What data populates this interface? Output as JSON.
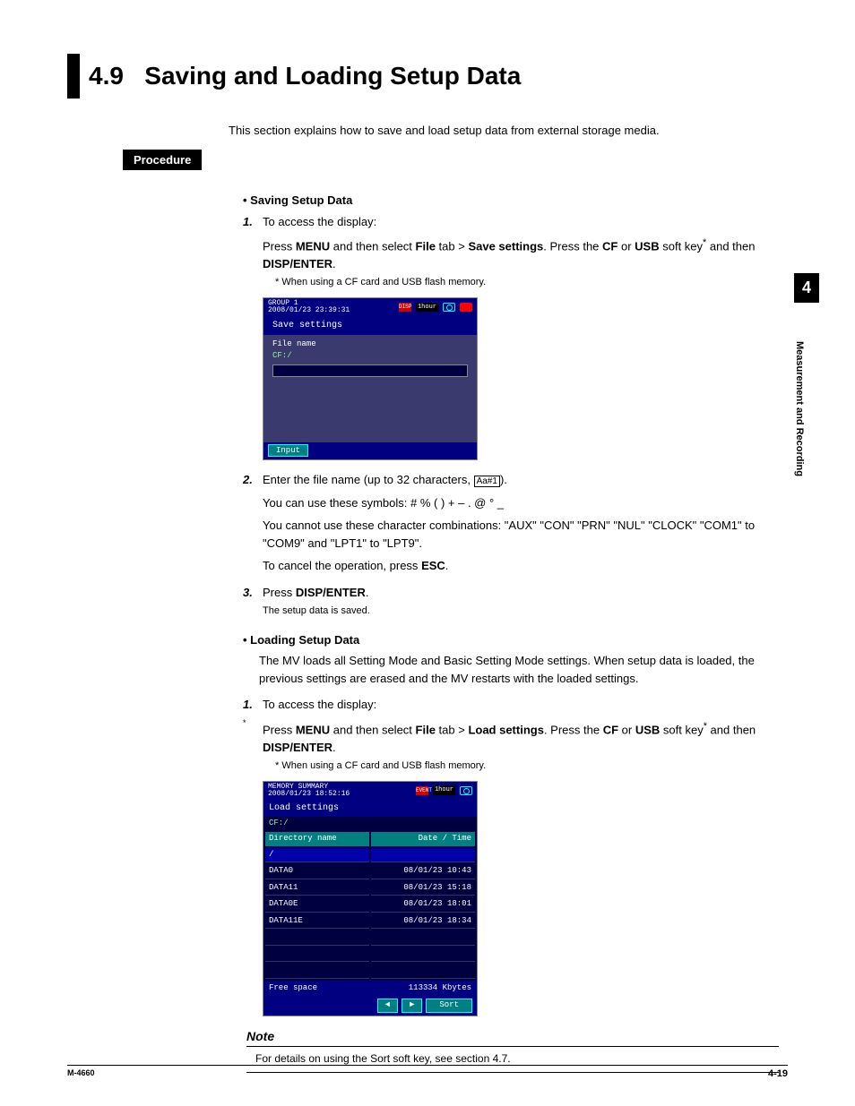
{
  "section": {
    "number": "4.9",
    "title": "Saving and Loading Setup Data",
    "intro": "This section explains how to save and load setup data from external storage media."
  },
  "procedure_label": "Procedure",
  "saving": {
    "heading": "Saving Setup Data",
    "step1": "To access the display:",
    "step1_detail_pre": "Press ",
    "step1_menu": "MENU",
    "step1_mid1": " and then select ",
    "step1_file": "File",
    "step1_mid2": " tab > ",
    "step1_save": "Save settings",
    "step1_mid3": ". Press the ",
    "step1_cf": "CF",
    "step1_or": " or ",
    "step1_usb": "USB",
    "step1_end": " soft key",
    "step1_star": "*",
    "step1_then": " and then ",
    "step1_disp": "DISP/ENTER",
    "step1_period": ".",
    "step1_footnote": "*   When using a CF card and USB flash memory.",
    "step2_pre": "Enter the file name (up to 32 characters, ",
    "step2_aa": "Aa#1",
    "step2_post": ").",
    "step2_line2": "You can use these symbols: # % ( ) + – . @ ° _",
    "step2_line3": "You cannot use these character combinations: \"AUX\" \"CON\" \"PRN\" \"NUL\" \"CLOCK\" \"COM1\" to \"COM9\" and \"LPT1\" to \"LPT9\".",
    "step2_line4_pre": "To cancel the operation, press ",
    "step2_esc": "ESC",
    "step2_line4_post": ".",
    "step3_pre": "Press ",
    "step3_disp": "DISP/ENTER",
    "step3_post": ".",
    "step3_note": "The setup data is saved."
  },
  "screenshot1": {
    "group": "GROUP 1",
    "datetime": "2008/01/23 23:39:31",
    "disp": "DISP",
    "event": "EVENT",
    "time": "1hour",
    "title": "Save settings",
    "filename_label": "File name",
    "path": "CF:/",
    "input_btn": "Input"
  },
  "loading": {
    "heading": "Loading Setup Data",
    "para": "The MV loads all Setting Mode and Basic Setting Mode settings. When setup data is loaded, the previous settings are erased and the MV restarts with the loaded settings.",
    "step1": "To access the display:",
    "step1_detail_pre": "Press ",
    "step1_menu": "MENU",
    "step1_mid1": " and then select ",
    "step1_file": "File",
    "step1_mid2": " tab > ",
    "step1_load": "Load settings",
    "step1_mid3": ". Press the ",
    "step1_cf": "CF",
    "step1_or": " or ",
    "step1_usb": "USB",
    "step1_end": " soft key",
    "step1_star": "*",
    "step1_then": " and then ",
    "step1_disp": "DISP/ENTER",
    "step1_period": ".",
    "step1_footnote": "*   When using a CF card and USB flash memory."
  },
  "screenshot2": {
    "header": "MEMORY SUMMARY",
    "datetime": "2008/01/23 18:52:16",
    "event": "EVENT",
    "time": "1hour",
    "title": "Load settings",
    "path": "CF:/",
    "col1": "Directory name",
    "col2": "Date / Time",
    "rows": [
      {
        "name": "/",
        "dt": ""
      },
      {
        "name": "DATA0",
        "dt": "08/01/23 10:43"
      },
      {
        "name": "DATA11",
        "dt": "08/01/23 15:18"
      },
      {
        "name": "DATA0E",
        "dt": "08/01/23 18:01"
      },
      {
        "name": "DATA11E",
        "dt": "08/01/23 18:34"
      }
    ],
    "free_label": "Free space",
    "free_val": "113334 Kbytes",
    "nav_left": "◄",
    "nav_right": "►",
    "sort": "Sort"
  },
  "note": {
    "title": "Note",
    "text": "For details on using the Sort soft key, see section 4.7."
  },
  "sidetab": {
    "num": "4",
    "text": "Measurement and Recording"
  },
  "footer": {
    "left": "M-4660",
    "right": "4-19"
  }
}
